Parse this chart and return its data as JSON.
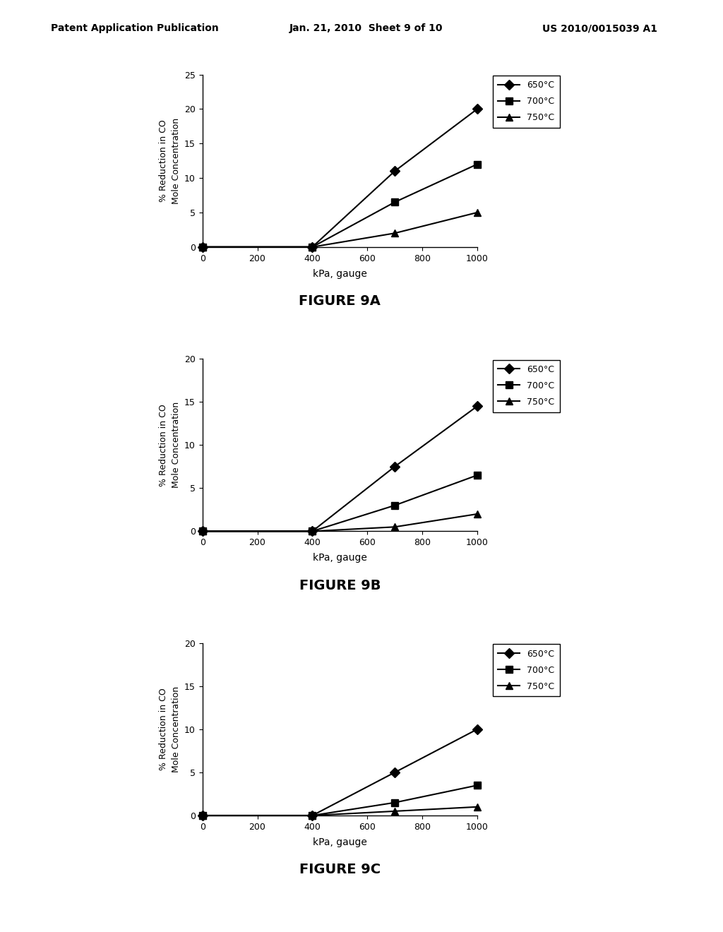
{
  "header_left": "Patent Application Publication",
  "header_center": "Jan. 21, 2010  Sheet 9 of 10",
  "header_right": "US 2010/0015039 A1",
  "figures": [
    {
      "label": "FIGURE 9A",
      "ylabel": "% Reduction in CO\nMole Concentration",
      "xlabel": "kPa, gauge",
      "ylim": [
        0,
        25
      ],
      "yticks": [
        0,
        5,
        10,
        15,
        20,
        25
      ],
      "xlim": [
        0,
        1000
      ],
      "xticks": [
        0,
        200,
        400,
        600,
        800,
        1000
      ],
      "series": [
        {
          "label": "650°C",
          "x": [
            0,
            400,
            700,
            1000
          ],
          "y": [
            0,
            0,
            11,
            20
          ],
          "marker": "D",
          "color": "#000000"
        },
        {
          "label": "700°C",
          "x": [
            0,
            400,
            700,
            1000
          ],
          "y": [
            0,
            0,
            6.5,
            12
          ],
          "marker": "s",
          "color": "#000000"
        },
        {
          "label": "750°C",
          "x": [
            0,
            400,
            700,
            1000
          ],
          "y": [
            0,
            0,
            2.0,
            5.0
          ],
          "marker": "^",
          "color": "#000000"
        }
      ]
    },
    {
      "label": "FIGURE 9B",
      "ylabel": "% Reduction in CO\nMole Concentration",
      "xlabel": "kPa, gauge",
      "ylim": [
        0,
        20
      ],
      "yticks": [
        0,
        5,
        10,
        15,
        20
      ],
      "xlim": [
        0,
        1000
      ],
      "xticks": [
        0,
        200,
        400,
        600,
        800,
        1000
      ],
      "series": [
        {
          "label": "650°C",
          "x": [
            0,
            400,
            700,
            1000
          ],
          "y": [
            0,
            0,
            7.5,
            14.5
          ],
          "marker": "D",
          "color": "#000000"
        },
        {
          "label": "700°C",
          "x": [
            0,
            400,
            700,
            1000
          ],
          "y": [
            0,
            0,
            3.0,
            6.5
          ],
          "marker": "s",
          "color": "#000000"
        },
        {
          "label": "750°C",
          "x": [
            0,
            400,
            700,
            1000
          ],
          "y": [
            0,
            0,
            0.5,
            2.0
          ],
          "marker": "^",
          "color": "#000000"
        }
      ]
    },
    {
      "label": "FIGURE 9C",
      "ylabel": "% Reduction in CO\nMole Concentration",
      "xlabel": "kPa, gauge",
      "ylim": [
        0,
        20
      ],
      "yticks": [
        0,
        5,
        10,
        15,
        20
      ],
      "xlim": [
        0,
        1000
      ],
      "xticks": [
        0,
        200,
        400,
        600,
        800,
        1000
      ],
      "series": [
        {
          "label": "650°C",
          "x": [
            0,
            400,
            700,
            1000
          ],
          "y": [
            0,
            0,
            5.0,
            10.0
          ],
          "marker": "D",
          "color": "#000000"
        },
        {
          "label": "700°C",
          "x": [
            0,
            400,
            700,
            1000
          ],
          "y": [
            0,
            0,
            1.5,
            3.5
          ],
          "marker": "s",
          "color": "#000000"
        },
        {
          "label": "750°C",
          "x": [
            0,
            400,
            700,
            1000
          ],
          "y": [
            0,
            0,
            0.5,
            1.0
          ],
          "marker": "^",
          "color": "#000000"
        }
      ]
    }
  ],
  "bg_color": "#ffffff",
  "plot_bg": "#ffffff",
  "marker_size": 7,
  "linewidth": 1.5,
  "header_fontsize": 10,
  "tick_fontsize": 9,
  "label_fontsize": 9,
  "figure_label_fontsize": 14
}
